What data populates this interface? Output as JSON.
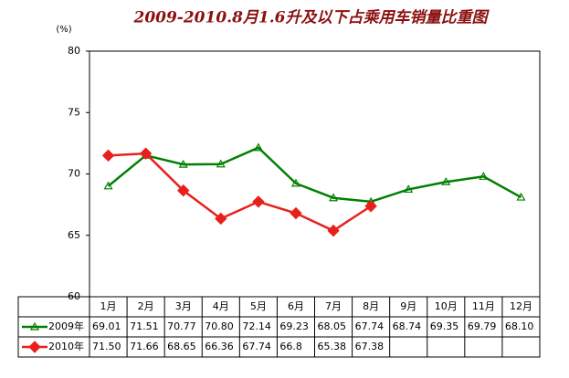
{
  "chart_data": {
    "type": "line",
    "title": "2009-2010.8月1.6升及以下占乘用车销量比重图",
    "y_unit_label": "(%)",
    "categories": [
      "1月",
      "2月",
      "3月",
      "4月",
      "5月",
      "6月",
      "7月",
      "8月",
      "9月",
      "10月",
      "11月",
      "12月"
    ],
    "series": [
      {
        "name": "2009年",
        "color": "#008000",
        "marker": "triangle",
        "values": [
          69.01,
          71.51,
          70.77,
          70.8,
          72.14,
          69.23,
          68.05,
          67.74,
          68.74,
          69.35,
          69.79,
          68.1
        ],
        "value_labels": [
          "69.01",
          "71.51",
          "70.77",
          "70.80",
          "72.14",
          "69.23",
          "68.05",
          "67.74",
          "68.74",
          "69.35",
          "69.79",
          "68.10"
        ]
      },
      {
        "name": "2010年",
        "color": "#e8201c",
        "marker": "diamond",
        "values": [
          71.5,
          71.66,
          68.65,
          66.36,
          67.74,
          66.8,
          65.38,
          67.38,
          null,
          null,
          null,
          null
        ],
        "value_labels": [
          "71.50",
          "71.66",
          "68.65",
          "66.36",
          "67.74",
          "66.8",
          "65.38",
          "67.38",
          null,
          null,
          null,
          null
        ]
      }
    ],
    "ylim": [
      60,
      80
    ],
    "yticks": [
      60,
      65,
      70,
      75,
      80
    ],
    "grid": false
  }
}
